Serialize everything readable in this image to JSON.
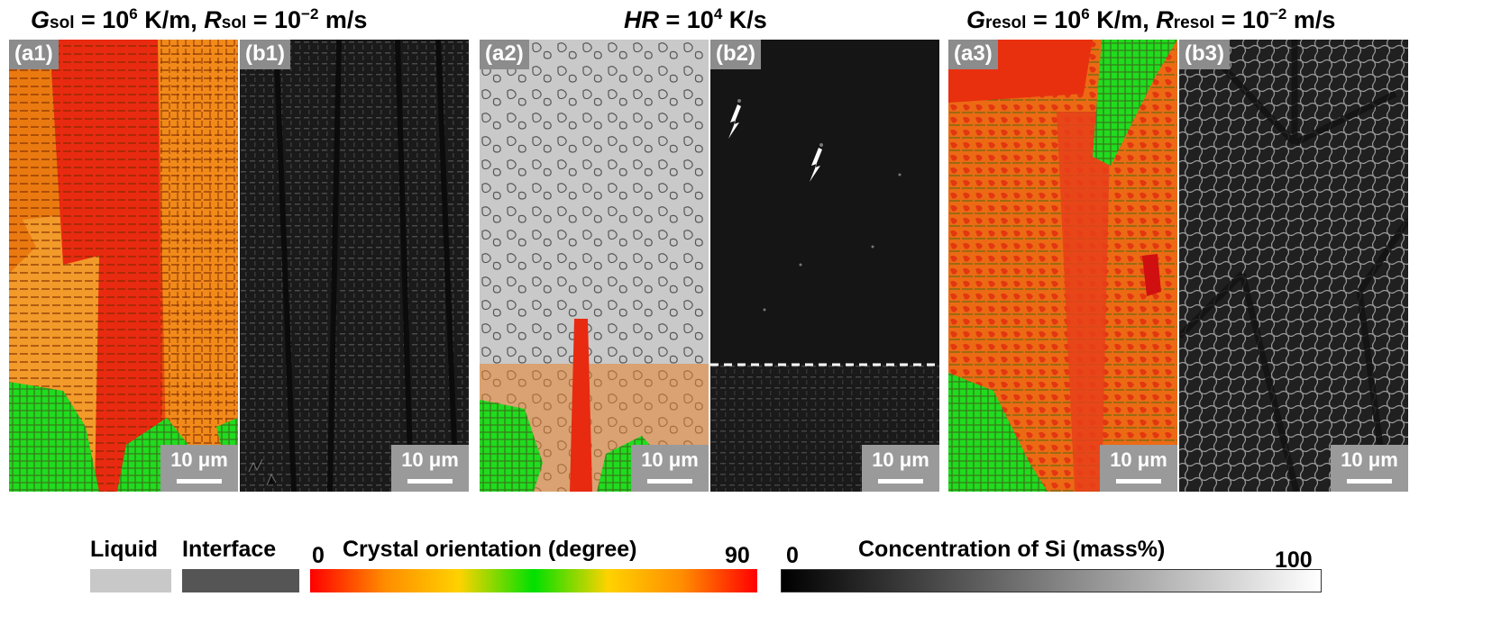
{
  "headers": {
    "left": {
      "G": "G",
      "G_sub": "sol",
      "G_eq": " = 10",
      "G_exp": "6",
      "G_unit": " K/m, ",
      "R": "R",
      "R_sub": "sol",
      "R_eq": " = 10",
      "R_exp": "−2",
      "R_unit": " m/s"
    },
    "middle": {
      "HR": "HR",
      "eq": " = 10",
      "exp": "4",
      "unit": " K/s"
    },
    "right": {
      "G": "G",
      "G_sub": "resol",
      "G_eq": " = 10",
      "G_exp": "6",
      "G_unit": " K/m, ",
      "R": "R",
      "R_sub": "resol",
      "R_eq": " = 10",
      "R_exp": "−2",
      "R_unit": " m/s"
    }
  },
  "panels": [
    {
      "label": "(a1)",
      "kind": "orientation",
      "scale": "10 μm"
    },
    {
      "label": "(b1)",
      "kind": "concentration",
      "scale": "10 μm"
    },
    {
      "label": "(a2)",
      "kind": "orientation-liquid",
      "scale": "10 μm"
    },
    {
      "label": "(b2)",
      "kind": "concentration-liquid",
      "scale": "10 μm"
    },
    {
      "label": "(a3)",
      "kind": "orientation",
      "scale": "10 μm"
    },
    {
      "label": "(b3)",
      "kind": "concentration",
      "scale": "10 μm"
    }
  ],
  "legend": {
    "liquid": "Liquid",
    "interface": "Interface",
    "orientation_title": "Crystal orientation (degree)",
    "orientation_min": "0",
    "orientation_max": "90",
    "conc_title": "Concentration of Si (mass%)",
    "conc_min": "0",
    "conc_max": "100",
    "colors": {
      "liquid": "#c8c8c8",
      "interface": "#555555",
      "orientation": [
        "#ff0000",
        "#ff8c00",
        "#ffd200",
        "#00e000",
        "#ffd200",
        "#ff8c00",
        "#ff0000"
      ],
      "concentration": [
        "#000000",
        "#ffffff"
      ]
    }
  }
}
